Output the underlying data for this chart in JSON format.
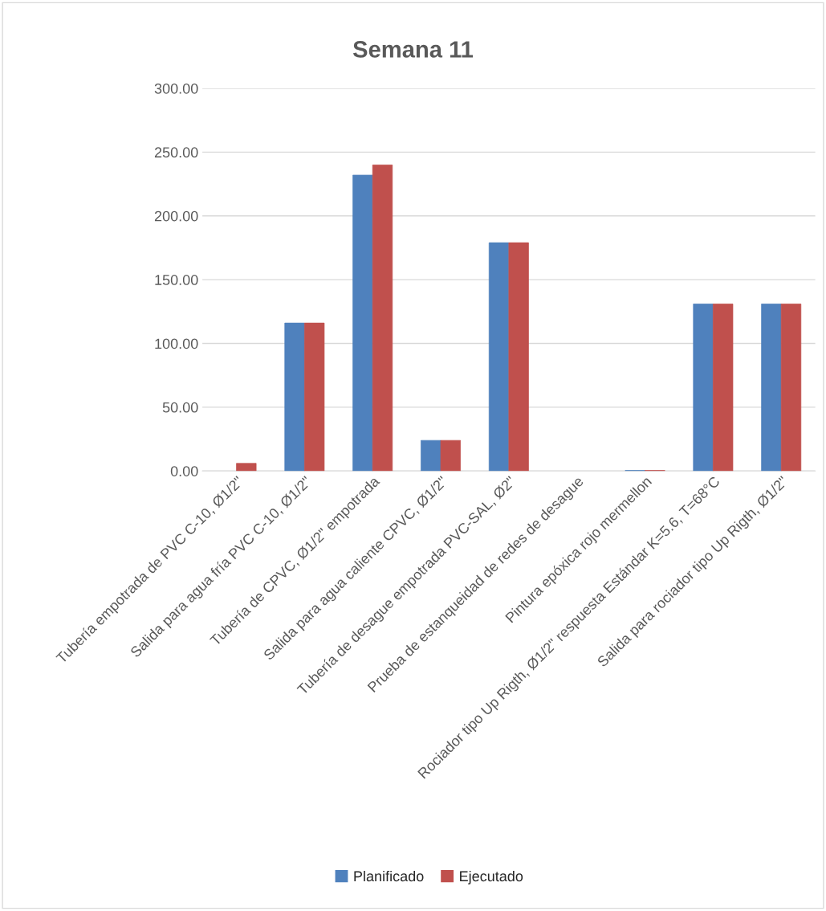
{
  "chart_data": {
    "type": "bar",
    "title": "Semana 11",
    "categories": [
      "Tubería empotrada de PVC C-10, Ø1/2\"",
      "Salida para agua fría PVC C-10, Ø1/2\"",
      "Tubería de CPVC, Ø1/2\" empotrada",
      "Salida para agua caliente CPVC, Ø1/2\"",
      "Tubería de desague empotrada PVC-SAL, Ø2\"",
      "Prueba de estanqueidad de redes de desague",
      "Pintura epóxica rojo mermellon",
      "Rociador tipo Up Rigth, Ø1/2\" respuesta Estándar K=5.6, T=68°C",
      "Salida para rociador tipo Up Rigth, Ø1/2\""
    ],
    "series": [
      {
        "name": "Planificado",
        "color": "#4f81bd",
        "values": [
          null,
          116,
          232,
          24,
          179,
          null,
          0.5,
          131,
          131
        ]
      },
      {
        "name": "Ejecutado",
        "color": "#c0504d",
        "values": [
          6,
          116,
          240,
          24,
          179,
          null,
          0.5,
          131,
          131
        ]
      }
    ],
    "ylim": [
      0,
      300
    ],
    "yticks": [
      {
        "value": 0,
        "label": "0.00"
      },
      {
        "value": 50,
        "label": "50.00"
      },
      {
        "value": 100,
        "label": "100.00"
      },
      {
        "value": 150,
        "label": "150.00"
      },
      {
        "value": 200,
        "label": "200.00"
      },
      {
        "value": 250,
        "label": "250.00"
      },
      {
        "value": 300,
        "label": "300.00"
      }
    ],
    "grid": "y",
    "legend": "bottom"
  }
}
